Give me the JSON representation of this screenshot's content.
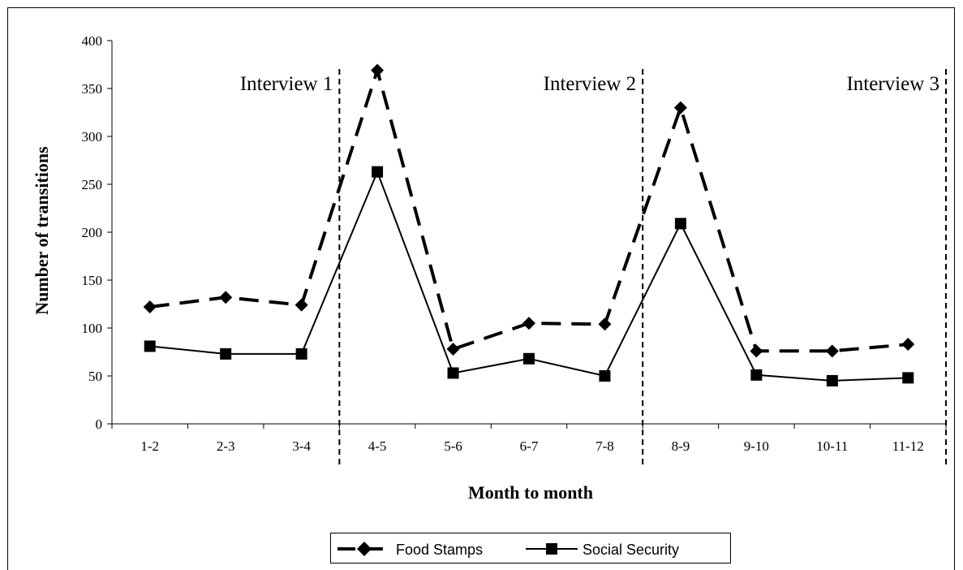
{
  "chart_data": {
    "type": "line",
    "title": "",
    "xlabel": "Month to month",
    "ylabel": "Number of transitions",
    "categories": [
      "1-2",
      "2-3",
      "3-4",
      "4-5",
      "5-6",
      "6-7",
      "7-8",
      "8-9",
      "9-10",
      "10-11",
      "11-12"
    ],
    "ylim": [
      0,
      400
    ],
    "yticks": [
      "0",
      "50",
      "100",
      "150",
      "200",
      "250",
      "300",
      "350",
      "400"
    ],
    "grid": false,
    "legend_position": "bottom",
    "series": [
      {
        "name": "Food Stamps",
        "style": "dashed",
        "marker": "diamond",
        "color": "#000000",
        "values": [
          122,
          132,
          124,
          369,
          78,
          105,
          104,
          330,
          76,
          76,
          83
        ]
      },
      {
        "name": "Social Security",
        "style": "solid",
        "marker": "square",
        "color": "#000000",
        "values": [
          81,
          73,
          73,
          263,
          53,
          68,
          50,
          209,
          51,
          45,
          48
        ]
      }
    ],
    "annotations": [
      {
        "text": "Interview 1",
        "after_category": "3-4"
      },
      {
        "text": "Interview 2",
        "after_category": "7-8"
      },
      {
        "text": "Interview 3",
        "after_category": "11-12"
      }
    ]
  }
}
